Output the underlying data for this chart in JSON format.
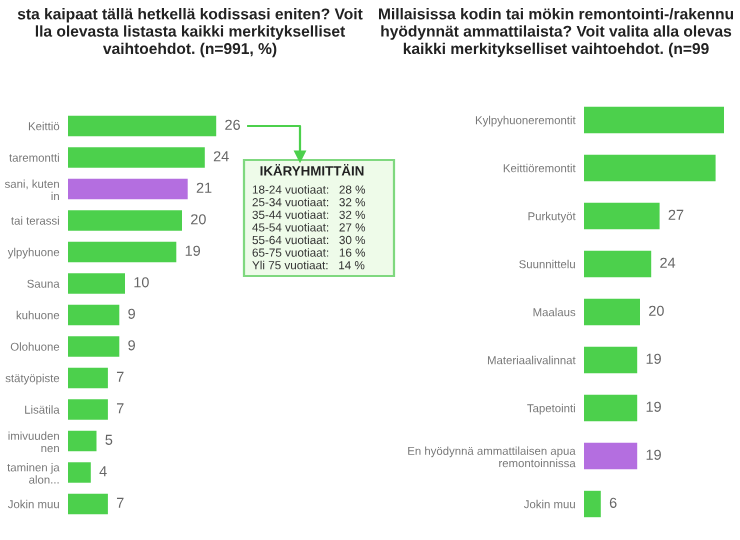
{
  "chart_data": [
    {
      "type": "bar",
      "orientation": "horizontal",
      "title": "sta kaipaat tällä hetkellä kodissasi eniten? Voit\nlla olevasta listasta kaikki merkitykselliset\nvaihtoehdot. (n=991, %)",
      "categories": [
        "Keittiö",
        "taremontti",
        "sani, kuten\nin",
        "tai terassi",
        "ylpyhuone",
        "Sauna",
        "kuhuone",
        "Olohuone",
        "stätyöpiste",
        "Lisätila",
        "imivuuden\nnen",
        "taminen ja\nalon...",
        "Jokin muu"
      ],
      "values": [
        26,
        24,
        21,
        20,
        19,
        10,
        9,
        9,
        7,
        7,
        5,
        4,
        7
      ],
      "colors": [
        "#4cd04c",
        "#4cd04c",
        "#b46ee0",
        "#4cd04c",
        "#4cd04c",
        "#4cd04c",
        "#4cd04c",
        "#4cd04c",
        "#4cd04c",
        "#4cd04c",
        "#4cd04c",
        "#4cd04c",
        "#4cd04c"
      ],
      "data_labels": true,
      "annotations": [
        "IKÄRYHMITTÄIN",
        "18-24 vuotiaat:   28 %",
        "25-34 vuotiaat:   32 %",
        "35-44 vuotiaat:   32 %",
        "45-54 vuotiaat:   27 %",
        "55-64 vuotiaat:   30 %",
        "65-75 vuotiaat:   16 %",
        "Yli 75 vuotiaat:   14 %"
      ]
    },
    {
      "type": "bar",
      "orientation": "horizontal",
      "title": "Millaisissa kodin tai mökin remontointi-/rakennu\nhyödynnät ammattilaista? Voit valita alla olevas\nkaikki merkitykselliset vaihtoehdot. (n=99",
      "categories": [
        "Kylpyhuoneremontit",
        "Keittiöremontit",
        "Purkutyöt",
        "Suunnittelu",
        "Maalaus",
        "Materiaalivalinnat",
        "Tapetointi",
        "En hyödynnä ammattilaisen apua\nremontoinnissa",
        "Jokin muu"
      ],
      "values": [
        50,
        47,
        27,
        24,
        20,
        19,
        19,
        19,
        6
      ],
      "value_labels": [
        null,
        null,
        "27",
        "24",
        "20",
        "19",
        "19",
        "19",
        "6"
      ],
      "colors": [
        "#4cd04c",
        "#4cd04c",
        "#4cd04c",
        "#4cd04c",
        "#4cd04c",
        "#4cd04c",
        "#4cd04c",
        "#b46ee0",
        "#4cd04c"
      ]
    }
  ]
}
